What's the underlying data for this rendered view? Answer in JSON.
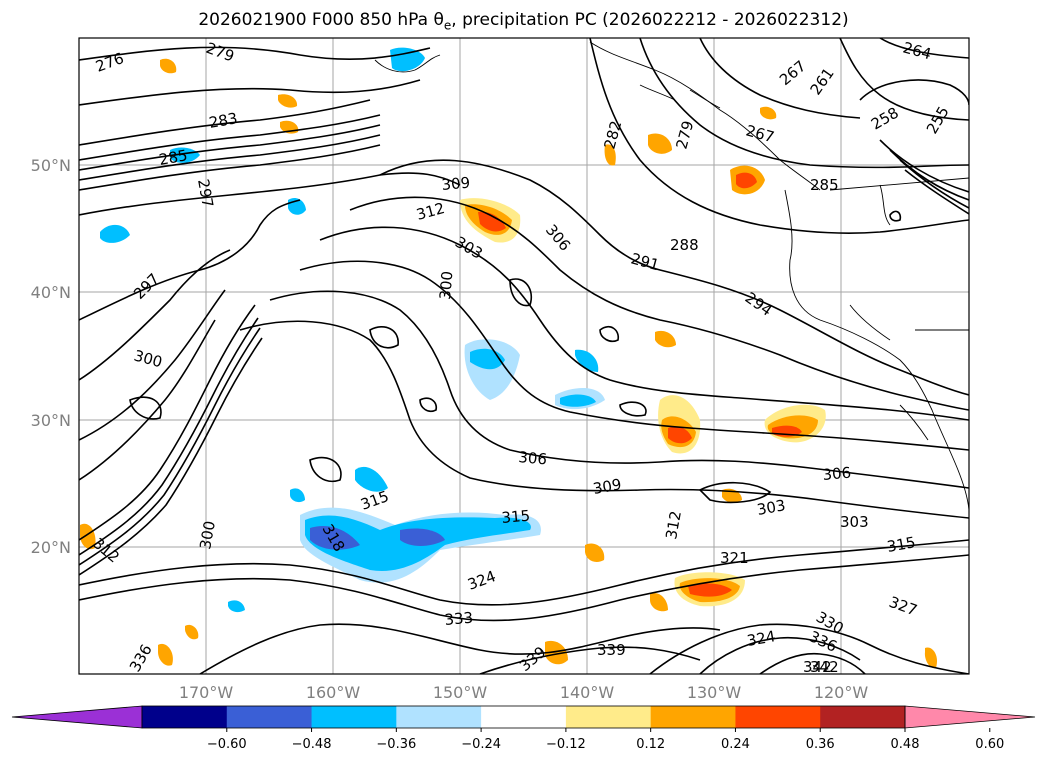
{
  "title": {
    "prefix": "2026021900 F000 850 hPa θ",
    "sub": "e",
    "suffix": ", precipitation PC (2026022212 - 2026022312)"
  },
  "lon_labels": [
    "170°W",
    "160°W",
    "150°W",
    "140°W",
    "130°W",
    "120°W"
  ],
  "lat_labels": [
    "50°N",
    "40°N",
    "30°N",
    "20°N"
  ],
  "colorbar": {
    "colors": [
      "#9b30d6",
      "#00008b",
      "#3a5fd6",
      "#00bfff",
      "#b0e2ff",
      "#ffffff",
      "#ffeb8a",
      "#ffa500",
      "#ff4500",
      "#b22222",
      "#ff88aa"
    ],
    "tick_labels": [
      "−0.60",
      "−0.48",
      "−0.36",
      "−0.24",
      "−0.12",
      "0.12",
      "0.24",
      "0.36",
      "0.48",
      "0.60"
    ]
  },
  "contour_labels": [
    "276",
    "279",
    "264",
    "267",
    "261",
    "255",
    "258",
    "283",
    "285",
    "297",
    "282",
    "279",
    "267",
    "285",
    "309",
    "312",
    "303",
    "306",
    "288",
    "291",
    "300",
    "297",
    "294",
    "300",
    "306",
    "309",
    "315",
    "315",
    "303",
    "303",
    "318",
    "306",
    "312",
    "321",
    "315",
    "324",
    "333",
    "339",
    "339",
    "324",
    "330",
    "336",
    "342",
    "327",
    "312",
    "300",
    "336"
  ],
  "precip_neg_label": "blue shading = negative precipitation PC",
  "precip_pos_label": "orange/red shading = positive precipitation PC"
}
